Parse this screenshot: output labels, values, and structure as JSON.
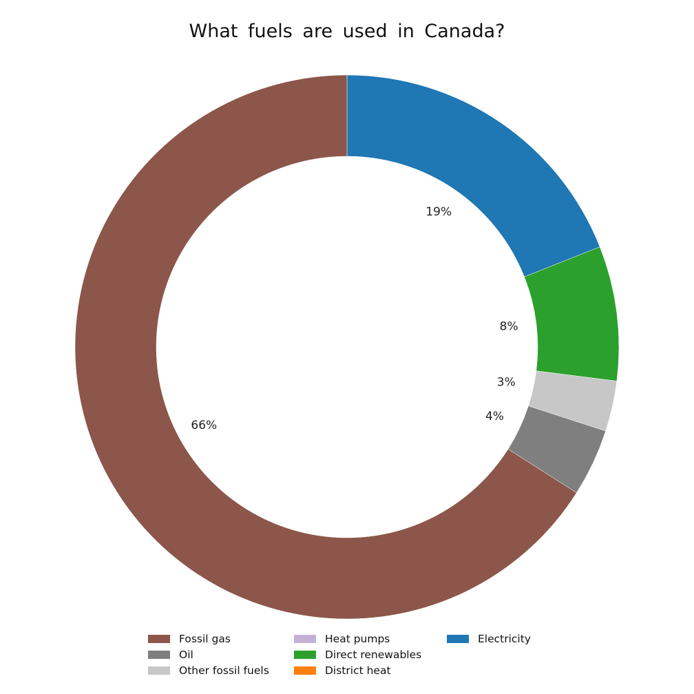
{
  "chart_data": {
    "type": "pie",
    "subtype": "donut",
    "title": "What fuels are used in Canada?",
    "slices": [
      {
        "name": "Electricity",
        "value": 19,
        "label": "19%",
        "color": "#1f77b4"
      },
      {
        "name": "Direct renewables",
        "value": 8,
        "label": "8%",
        "color": "#2ca02c"
      },
      {
        "name": "Other fossil fuels",
        "value": 3,
        "label": "3%",
        "color": "#c7c7c7"
      },
      {
        "name": "Oil",
        "value": 4,
        "label": "4%",
        "color": "#7f7f7f"
      },
      {
        "name": "Fossil gas",
        "value": 66,
        "label": "66%",
        "color": "#8c564b"
      }
    ],
    "legend": {
      "placement": "bottom",
      "entries": [
        {
          "name": "Fossil gas",
          "color": "#8c564b"
        },
        {
          "name": "Oil",
          "color": "#7f7f7f"
        },
        {
          "name": "Other fossil fuels",
          "color": "#c7c7c7"
        },
        {
          "name": "Heat pumps",
          "color": "#c5b0d5"
        },
        {
          "name": "Direct renewables",
          "color": "#2ca02c"
        },
        {
          "name": "District heat",
          "color": "#ff7f0e"
        },
        {
          "name": "Electricity",
          "color": "#1f77b4"
        }
      ]
    }
  }
}
